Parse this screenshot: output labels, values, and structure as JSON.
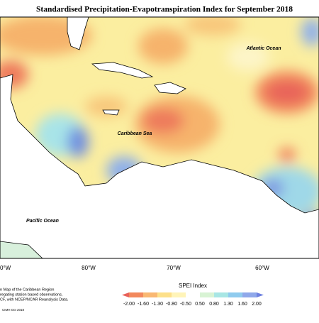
{
  "header": {
    "title": "Standardised Precipitation-Evapotranspiration Index for September 2018"
  },
  "map": {
    "labels": [
      "Atlantic Ocean",
      "Caribbean Sea",
      "Pacific Ocean"
    ],
    "longitudes": [
      "0°W",
      "80°W",
      "70°W",
      "60°W"
    ]
  },
  "legend": {
    "title": "SPEI Index",
    "ticks": [
      "-2.00",
      "-1.60",
      "-1.30",
      "-0.80",
      "-0.50",
      "0.50",
      "0.80",
      "1.30",
      "1.60",
      "2.00"
    ]
  },
  "footer": {
    "notes": [
      "n Map of the Caribbean Region",
      "regating station based observations,",
      "CF, with NCEP/NCAR Reanalysis Data."
    ],
    "credit": "CIMH Oct 2018"
  }
}
